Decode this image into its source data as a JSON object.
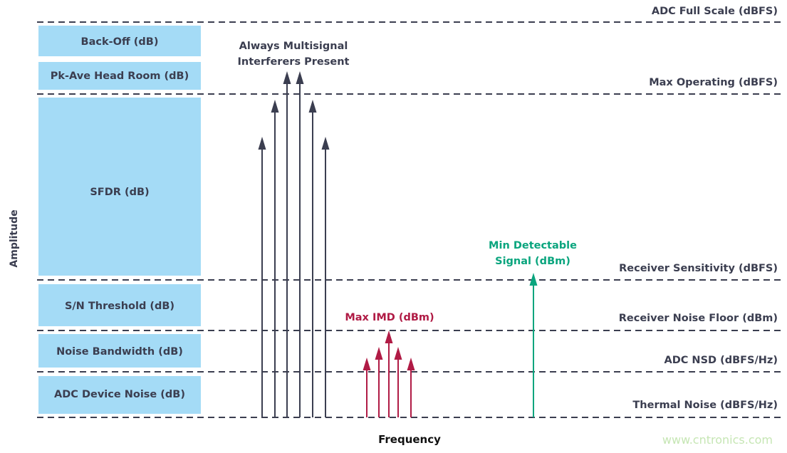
{
  "axes": {
    "y_label": "Amplitude",
    "x_label": "Frequency"
  },
  "levels": [
    {
      "id": "full-scale",
      "label": "ADC Full Scale (dBFS)"
    },
    {
      "id": "max-operating",
      "label": "Max Operating (dBFS)"
    },
    {
      "id": "receiver-sensitivity",
      "label": "Receiver Sensitivity (dBFS)"
    },
    {
      "id": "receiver-noise-floor",
      "label": "Receiver Noise Floor (dBm)"
    },
    {
      "id": "adc-nsd",
      "label": "ADC NSD (dBFS/Hz)"
    },
    {
      "id": "thermal-noise",
      "label": "Thermal Noise (dBFS/Hz)"
    }
  ],
  "blocks": [
    {
      "label": "Back-Off (dB)"
    },
    {
      "label": "Pk-Ave Head Room (dB)"
    },
    {
      "label": "SFDR (dB)"
    },
    {
      "label": "S/N Threshold (dB)"
    },
    {
      "label": "Noise Bandwidth (dB)"
    },
    {
      "label": "ADC Device Noise (dB)"
    }
  ],
  "annotations": {
    "interferers_line1": "Always Multisignal",
    "interferers_line2": "Interferers Present",
    "imd": "Max IMD (dBm)",
    "mds_line1": "Min Detectable",
    "mds_line2": "Signal (dBm)"
  },
  "watermark": "www.cntronics.com",
  "colors": {
    "ink": "#3b3e50",
    "block": "#a4dbf6",
    "imd": "#b01b45",
    "signal": "#0aa57e",
    "watermark": "#c6e6b4"
  }
}
